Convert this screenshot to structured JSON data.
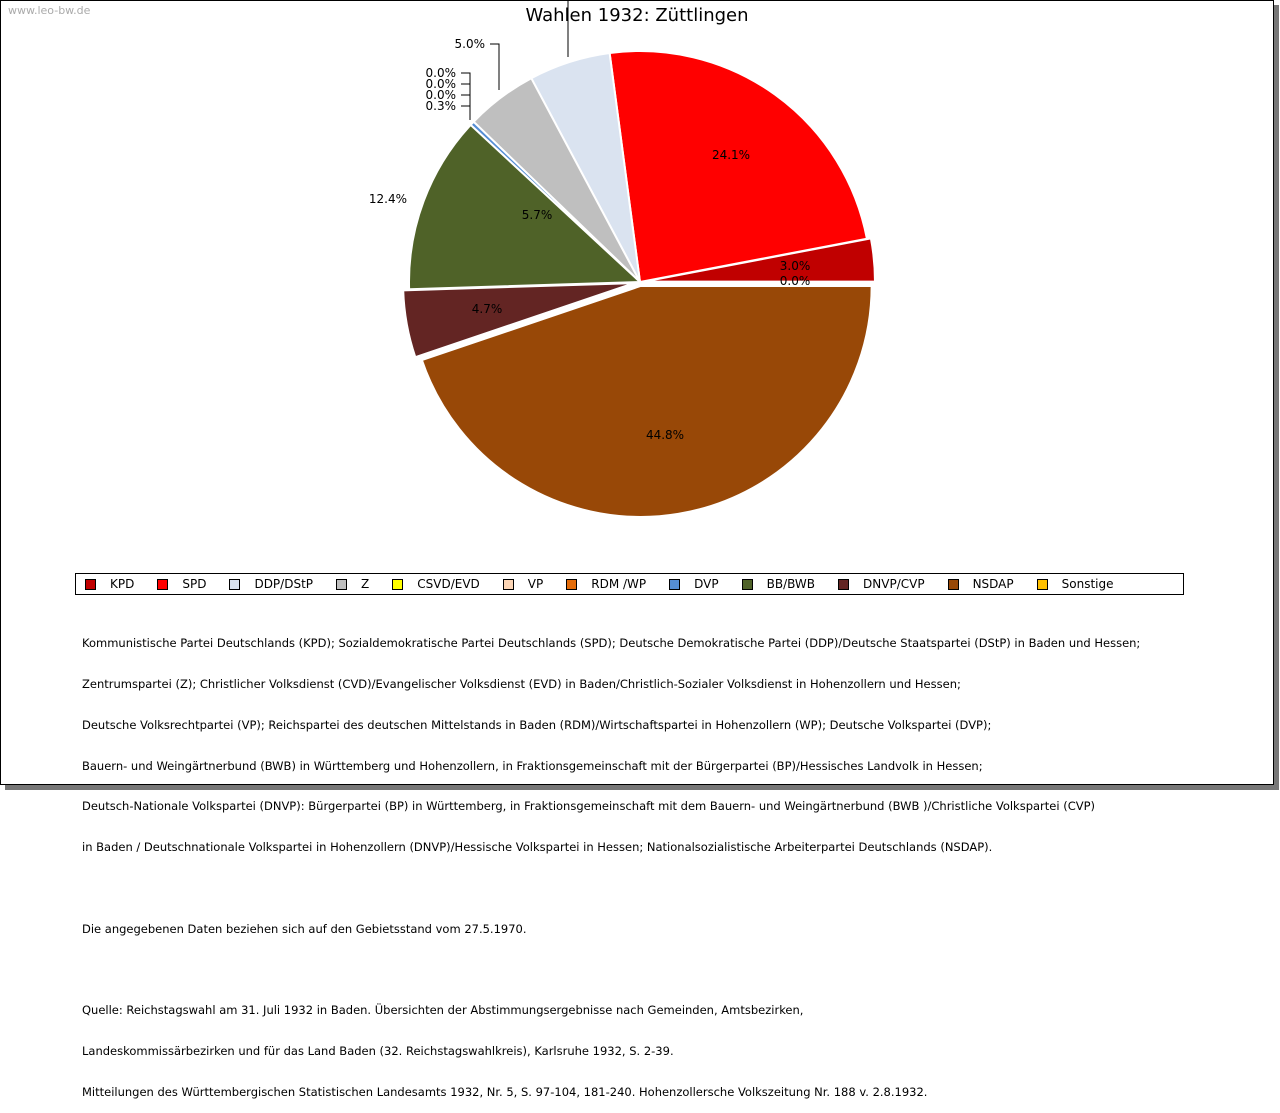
{
  "watermark": "www.leo-bw.de",
  "chart_data": {
    "type": "pie",
    "title": "Wahlen 1932: Züttlingen",
    "categories": [
      "KPD",
      "SPD",
      "DDP/DStP",
      "Z",
      "CSVD/EVD",
      "VP",
      "RDM /WP",
      "DVP",
      "BB/BWB",
      "DNVP/CVP",
      "NSDAP",
      "Sonstige"
    ],
    "values": [
      3.0,
      24.1,
      5.7,
      5.0,
      0.0,
      0.0,
      0.0,
      0.3,
      12.4,
      4.7,
      44.8,
      0.0
    ],
    "labels": [
      "3.0%",
      "24.1%",
      "5.7%",
      "5.0%",
      "0.0%",
      "0.0%",
      "0.0%",
      "0.3%",
      "12.4%",
      "4.7%",
      "44.8%",
      "0.0%"
    ],
    "colors": [
      "#c00000",
      "#ff0000",
      "#dae3f0",
      "#bfbfbf",
      "#ffff00",
      "#fcd5b5",
      "#e46c0a",
      "#558ed5",
      "#4f6228",
      "#632523",
      "#984807",
      "#ffc000"
    ],
    "legend_position": "bottom"
  },
  "notes": {
    "parties": [
      "Kommunistische Partei Deutschlands (KPD); Sozialdemokratische Partei Deutschlands (SPD); Deutsche Demokratische Partei (DDP)/Deutsche Staatspartei (DStP) in Baden und Hessen;",
      "Zentrumspartei (Z); Christlicher Volksdienst (CVD)/Evangelischer Volksdienst (EVD) in Baden/Christlich-Sozialer Volksdienst in Hohenzollern und Hessen;",
      "Deutsche Volksrechtpartei (VP); Reichspartei des deutschen Mittelstands in Baden (RDM)/Wirtschaftspartei in Hohenzollern (WP); Deutsche Volkspartei (DVP);",
      "Bauern- und Weingärtnerbund (BWB) in Württemberg und Hohenzollern, in Fraktionsgemeinschaft mit der Bürgerpartei (BP)/Hessisches Landvolk in Hessen;",
      "Deutsch-Nationale Volkspartei (DNVP): Bürgerpartei (BP) in Württemberg, in Fraktionsgemeinschaft mit dem Bauern- und Weingärtnerbund (BWB )/Christliche Volkspartei (CVP)",
      "in Baden / Deutschnationale Volkspartei in Hohenzollern (DNVP)/Hessische Volkspartei in Hessen; Nationalsozialistische Arbeiterpartei Deutschlands (NSDAP)."
    ],
    "territory": "Die angegebenen Daten beziehen sich auf den Gebietsstand vom 27.5.1970.",
    "source": [
      "Quelle: Reichstagswahl am 31. Juli 1932 in Baden. Übersichten der Abstimmungsergebnisse nach Gemeinden, Amtsbezirken,",
      "Landeskommissärbezirken und für das Land Baden (32. Reichstagswahlkreis), Karlsruhe 1932, S. 2-39.",
      "Mitteilungen des Württembergischen Statistischen Landesamts 1932, Nr. 5, S. 97-104, 181-240. Hohenzollersche Volkszeitung Nr. 188 v. 2.8.1932."
    ]
  }
}
